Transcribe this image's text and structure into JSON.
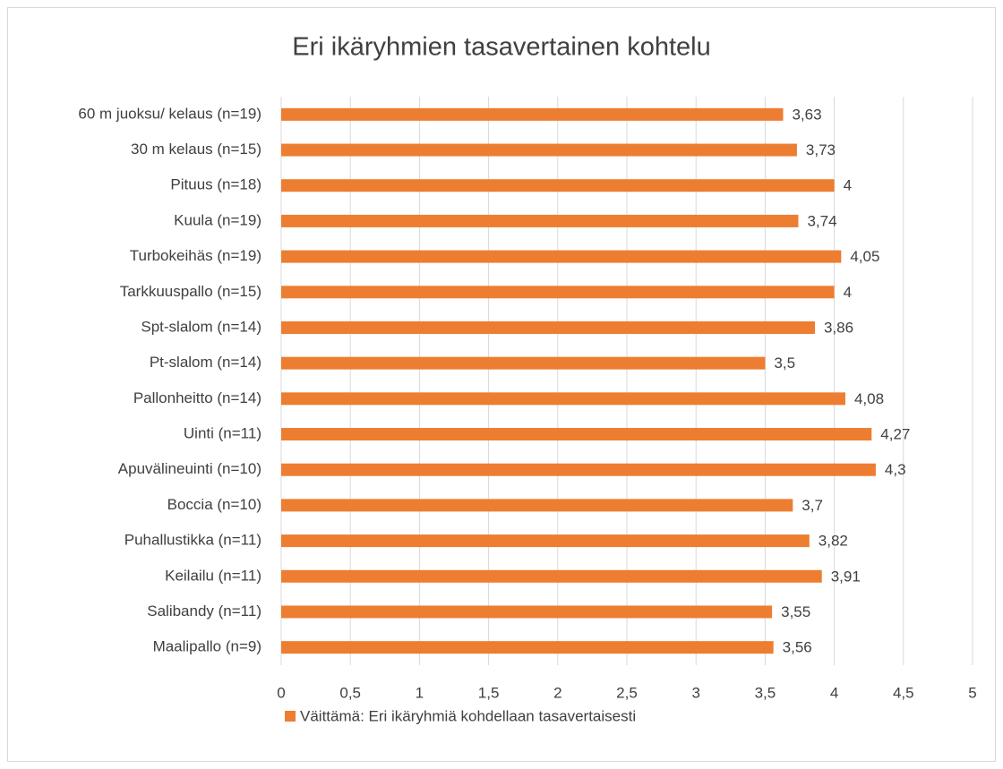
{
  "chart_data": {
    "type": "bar",
    "orientation": "horizontal",
    "title": "Eri ikäryhmien tasavertainen kohtelu",
    "categories": [
      "60 m juoksu/ kelaus (n=19)",
      "30 m kelaus (n=15)",
      "Pituus (n=18)",
      "Kuula (n=19)",
      "Turbokeihäs (n=19)",
      "Tarkkuuspallo (n=15)",
      "Spt-slalom (n=14)",
      "Pt-slalom (n=14)",
      "Pallonheitto (n=14)",
      "Uinti (n=11)",
      "Apuvälineuinti (n=10)",
      "Boccia (n=10)",
      "Puhallustikka (n=11)",
      "Keilailu (n=11)",
      "Salibandy (n=11)",
      "Maalipallo (n=9)"
    ],
    "series": [
      {
        "name": "Väittämä: Eri ikäryhmiä kohdellaan tasavertaisesti",
        "color": "#ed7d31",
        "values": [
          3.63,
          3.73,
          4,
          3.74,
          4.05,
          4,
          3.86,
          3.5,
          4.08,
          4.27,
          4.3,
          3.7,
          3.82,
          3.91,
          3.55,
          3.56
        ],
        "value_labels": [
          "3,63",
          "3,73",
          "4",
          "3,74",
          "4,05",
          "4",
          "3,86",
          "3,5",
          "4,08",
          "4,27",
          "4,3",
          "3,7",
          "3,82",
          "3,91",
          "3,55",
          "3,56"
        ]
      }
    ],
    "xlim": [
      0,
      5
    ],
    "xticks": [
      0,
      {
        "value": 0.5,
        "label": "0,5"
      },
      1,
      {
        "value": 1.5,
        "label": "1,5"
      },
      2,
      {
        "value": 2.5,
        "label": "2,5"
      },
      3,
      {
        "value": 3.5,
        "label": "3,5"
      },
      4,
      {
        "value": 4.5,
        "label": "4,5"
      },
      5
    ],
    "grid": true,
    "legend": "bottom"
  }
}
